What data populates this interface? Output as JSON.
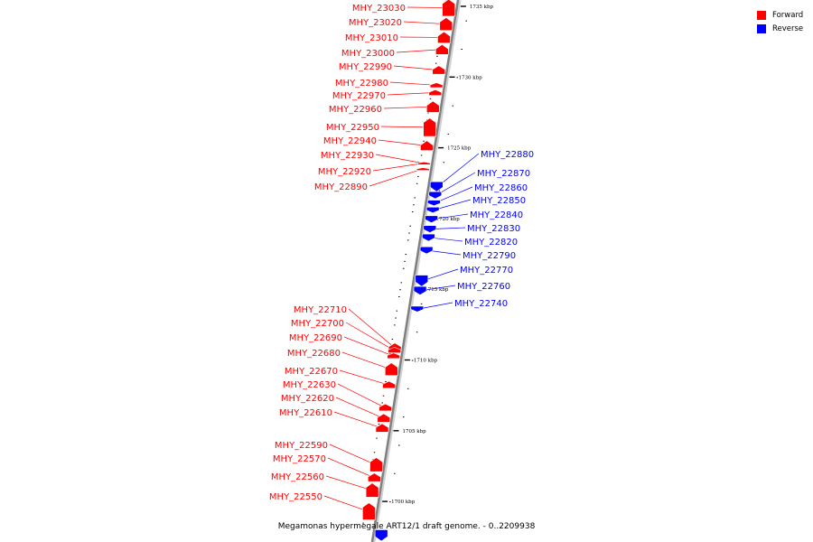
{
  "caption": "Megamonas hypermegale ART12/1 draft genome. - 0..2209938",
  "legend": [
    {
      "label": "Forward",
      "color": "#ff0000"
    },
    {
      "label": "Reverse",
      "color": "#0000ff"
    }
  ],
  "colors": {
    "forward": "#ff0000",
    "reverse": "#0000ff",
    "backbone": "#808080"
  },
  "scale_ticks": [
    {
      "label": "1735 kbp",
      "kbp": 1735
    },
    {
      "label": "1730 kbp",
      "kbp": 1730
    },
    {
      "label": "1725 kbp",
      "kbp": 1725
    },
    {
      "label": "1720 kbp",
      "kbp": 1720
    },
    {
      "label": "1715 kbp",
      "kbp": 1715
    },
    {
      "label": "1710 kbp",
      "kbp": 1710
    },
    {
      "label": "1705 kbp",
      "kbp": 1705
    },
    {
      "label": "1700 kbp",
      "kbp": 1700
    }
  ],
  "features": [
    {
      "name": "MHY_23030",
      "strand": "forward",
      "kbp": 1735.5,
      "len_kbp": 1.2
    },
    {
      "name": "MHY_23020",
      "strand": "forward",
      "kbp": 1734.2,
      "len_kbp": 0.9
    },
    {
      "name": "MHY_23010",
      "strand": "forward",
      "kbp": 1733.2,
      "len_kbp": 0.8
    },
    {
      "name": "MHY_23000",
      "strand": "forward",
      "kbp": 1732.3,
      "len_kbp": 0.7
    },
    {
      "name": "MHY_22990",
      "strand": "forward",
      "kbp": 1730.8,
      "len_kbp": 0.6
    },
    {
      "name": "MHY_22980",
      "strand": "forward",
      "kbp": 1729.6,
      "len_kbp": 0.35
    },
    {
      "name": "MHY_22970",
      "strand": "forward",
      "kbp": 1729.1,
      "len_kbp": 0.4
    },
    {
      "name": "MHY_22960",
      "strand": "forward",
      "kbp": 1728.3,
      "len_kbp": 0.8
    },
    {
      "name": "MHY_22950",
      "strand": "forward",
      "kbp": 1727.1,
      "len_kbp": 1.3
    },
    {
      "name": "MHY_22940",
      "strand": "forward",
      "kbp": 1725.5,
      "len_kbp": 0.7
    },
    {
      "name": "MHY_22930",
      "strand": "forward",
      "kbp": 1724.0,
      "len_kbp": 0.15
    },
    {
      "name": "MHY_22920",
      "strand": "forward",
      "kbp": 1724.0,
      "len_kbp": 0.15
    },
    {
      "name": "MHY_22890",
      "strand": "forward",
      "kbp": 1723.6,
      "len_kbp": 0.2
    },
    {
      "name": "MHY_22880",
      "strand": "reverse",
      "kbp": 1722.6,
      "len_kbp": 0.7
    },
    {
      "name": "MHY_22870",
      "strand": "reverse",
      "kbp": 1721.9,
      "len_kbp": 0.5
    },
    {
      "name": "MHY_22860",
      "strand": "reverse",
      "kbp": 1721.3,
      "len_kbp": 0.4
    },
    {
      "name": "MHY_22850",
      "strand": "reverse",
      "kbp": 1720.8,
      "len_kbp": 0.4
    },
    {
      "name": "MHY_22840",
      "strand": "reverse",
      "kbp": 1720.2,
      "len_kbp": 0.5
    },
    {
      "name": "MHY_22830",
      "strand": "reverse",
      "kbp": 1719.5,
      "len_kbp": 0.5
    },
    {
      "name": "MHY_22820",
      "strand": "reverse",
      "kbp": 1718.9,
      "len_kbp": 0.5
    },
    {
      "name": "MHY_22790",
      "strand": "reverse",
      "kbp": 1718.0,
      "len_kbp": 0.5
    },
    {
      "name": "MHY_22770",
      "strand": "reverse",
      "kbp": 1716.0,
      "len_kbp": 0.8
    },
    {
      "name": "MHY_22760",
      "strand": "reverse",
      "kbp": 1715.2,
      "len_kbp": 0.6
    },
    {
      "name": "MHY_22740",
      "strand": "reverse",
      "kbp": 1713.8,
      "len_kbp": 0.4
    },
    {
      "name": "MHY_22710",
      "strand": "forward",
      "kbp": 1711.2,
      "len_kbp": 0.6
    },
    {
      "name": "MHY_22700",
      "strand": "forward",
      "kbp": 1710.9,
      "len_kbp": 0.4
    },
    {
      "name": "MHY_22690",
      "strand": "forward",
      "kbp": 1710.5,
      "len_kbp": 0.4
    },
    {
      "name": "MHY_22680",
      "strand": "forward",
      "kbp": 1709.8,
      "len_kbp": 0.9
    },
    {
      "name": "MHY_22670",
      "strand": "forward",
      "kbp": 1708.5,
      "len_kbp": 0.5
    },
    {
      "name": "MHY_22630",
      "strand": "forward",
      "kbp": 1706.9,
      "len_kbp": 0.5
    },
    {
      "name": "MHY_22620",
      "strand": "forward",
      "kbp": 1706.2,
      "len_kbp": 0.6
    },
    {
      "name": "MHY_22610",
      "strand": "forward",
      "kbp": 1705.5,
      "len_kbp": 0.6
    },
    {
      "name": "MHY_22590",
      "strand": "forward",
      "kbp": 1703.1,
      "len_kbp": 1.0
    },
    {
      "name": "MHY_22570",
      "strand": "forward",
      "kbp": 1702.0,
      "len_kbp": 0.6
    },
    {
      "name": "MHY_22560",
      "strand": "forward",
      "kbp": 1701.3,
      "len_kbp": 1.0
    },
    {
      "name": "MHY_22550",
      "strand": "forward",
      "kbp": 1699.9,
      "len_kbp": 1.2
    },
    {
      "name": "",
      "strand": "reverse",
      "kbp": 1698.0,
      "len_kbp": 0.8
    }
  ]
}
